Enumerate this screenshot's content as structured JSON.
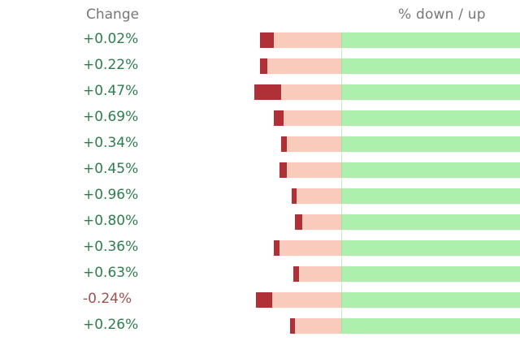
{
  "header": {
    "change_label": "Change",
    "updown_label": "% down / up"
  },
  "colors": {
    "positive_text": "#2e7d4f",
    "negative_text": "#a05050",
    "down_fill": "#f8cbbd",
    "down_marker": "#b03038",
    "up_fill": "#adf0ad"
  },
  "rows": [
    {
      "change": "+0.02%",
      "down_pct": 46,
      "marker_start_pct": 100,
      "marker_len_pct": 17
    },
    {
      "change": "+0.22%",
      "down_pct": 46,
      "marker_start_pct": 100,
      "marker_len_pct": 9
    },
    {
      "change": "+0.47%",
      "down_pct": 49,
      "marker_start_pct": 100,
      "marker_len_pct": 31
    },
    {
      "change": "+0.69%",
      "down_pct": 38,
      "marker_start_pct": 100,
      "marker_len_pct": 14
    },
    {
      "change": "+0.34%",
      "down_pct": 34,
      "marker_start_pct": 100,
      "marker_len_pct": 9
    },
    {
      "change": "+0.45%",
      "down_pct": 35,
      "marker_start_pct": 100,
      "marker_len_pct": 12
    },
    {
      "change": "+0.96%",
      "down_pct": 28,
      "marker_start_pct": 100,
      "marker_len_pct": 7
    },
    {
      "change": "+0.80%",
      "down_pct": 26,
      "marker_start_pct": 100,
      "marker_len_pct": 15
    },
    {
      "change": "+0.36%",
      "down_pct": 38,
      "marker_start_pct": 100,
      "marker_len_pct": 8
    },
    {
      "change": "+0.63%",
      "down_pct": 27,
      "marker_start_pct": 100,
      "marker_len_pct": 12
    },
    {
      "change": "-0.24%",
      "down_pct": 48,
      "marker_start_pct": 100,
      "marker_len_pct": 19
    },
    {
      "change": "+0.26%",
      "down_pct": 29,
      "marker_start_pct": 100,
      "marker_len_pct": 4
    }
  ]
}
